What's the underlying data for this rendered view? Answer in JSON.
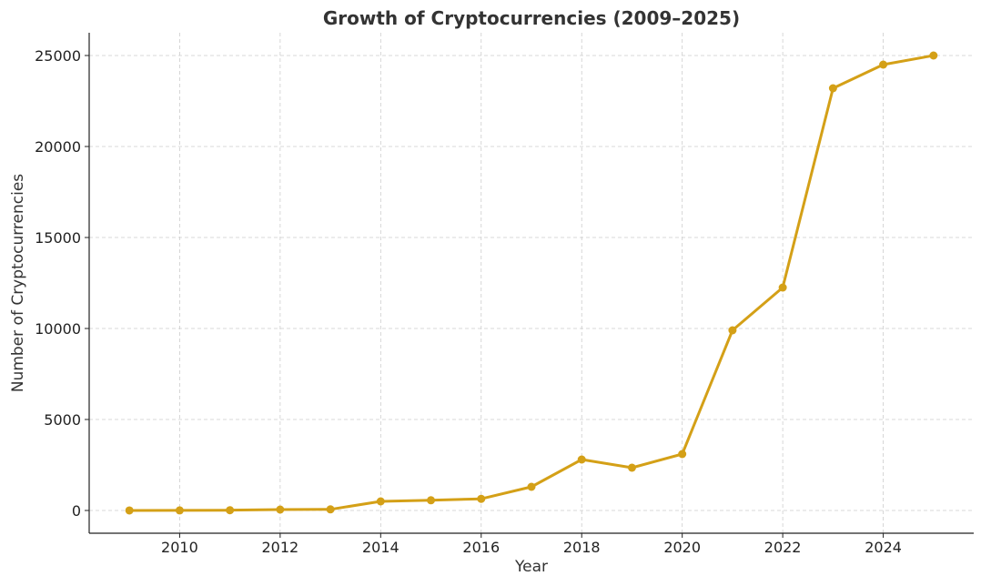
{
  "chart_data": {
    "type": "line",
    "title": "Growth of Cryptocurrencies (2009–2025)",
    "xlabel": "Year",
    "ylabel": "Number of Cryptocurrencies",
    "x": [
      2009,
      2010,
      2011,
      2012,
      2013,
      2014,
      2015,
      2016,
      2017,
      2018,
      2019,
      2020,
      2021,
      2022,
      2023,
      2024,
      2025
    ],
    "series": [
      {
        "name": "Cryptocurrencies",
        "values": [
          1,
          5,
          15,
          50,
          60,
          500,
          560,
          640,
          1300,
          2800,
          2350,
          3100,
          9900,
          12250,
          23200,
          24500,
          25000
        ]
      }
    ],
    "xlim": [
      2008.2,
      2025.8
    ],
    "ylim": [
      -1250,
      26250
    ],
    "xticks": [
      2010,
      2012,
      2014,
      2016,
      2018,
      2020,
      2022,
      2024
    ],
    "yticks": [
      0,
      5000,
      10000,
      15000,
      20000,
      25000
    ],
    "grid": true,
    "line_color": "#D4A017"
  }
}
